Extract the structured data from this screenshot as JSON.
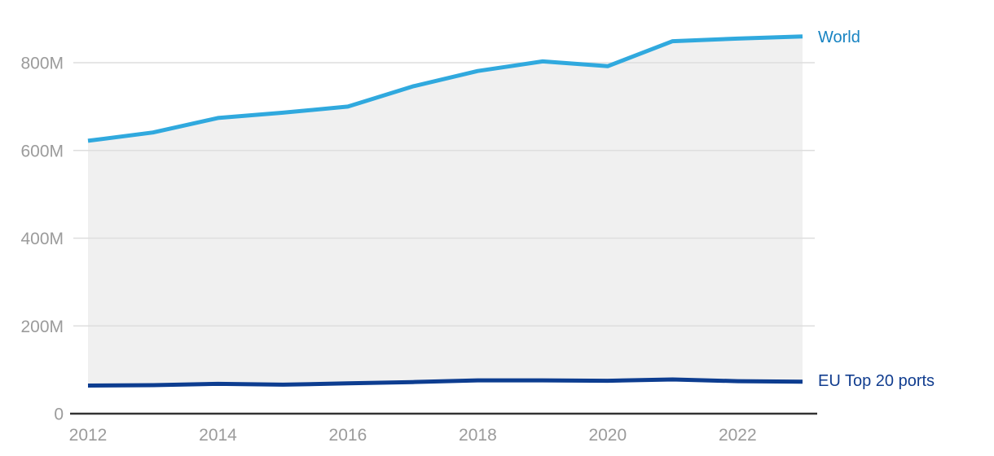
{
  "chart_data": {
    "type": "area",
    "title": "",
    "xlabel": "",
    "ylabel": "",
    "unit": "M",
    "x": [
      2012,
      2013,
      2014,
      2015,
      2016,
      2017,
      2018,
      2019,
      2020,
      2021,
      2022,
      2023
    ],
    "series": [
      {
        "name": "World",
        "values": [
          622,
          641,
          674,
          686,
          700,
          746,
          781,
          803,
          792,
          849,
          855,
          860
        ],
        "line_color": "#30A9DE",
        "label_color": "#1783C2"
      },
      {
        "name": "EU Top 20 ports",
        "values": [
          64,
          65,
          68,
          66,
          69,
          72,
          76,
          76,
          75,
          78,
          74,
          73
        ],
        "line_color": "#0D3D90",
        "label_color": "#113D8F"
      }
    ],
    "fill_between_series": true,
    "fill_color": "#F0F0F0",
    "y_axis": {
      "ticks": [
        {
          "label": "0",
          "value": 0
        },
        {
          "label": "200M",
          "value": 200
        },
        {
          "label": "400M",
          "value": 400
        },
        {
          "label": "600M",
          "value": 600
        },
        {
          "label": "800M",
          "value": 800
        }
      ],
      "range_min": 0,
      "range_max": 860
    },
    "x_axis": {
      "ticks": [
        {
          "label": "2012",
          "value": 2012
        },
        {
          "label": "2014",
          "value": 2014
        },
        {
          "label": "2016",
          "value": 2016
        },
        {
          "label": "2018",
          "value": 2018
        },
        {
          "label": "2020",
          "value": 2020
        },
        {
          "label": "2022",
          "value": 2022
        }
      ]
    },
    "legend_position": "line-end-right",
    "grid": "horizontal",
    "colors": {
      "grid_line": "#DEDEDE",
      "axis_line": "#333333",
      "tick_text": "#9B9B9B",
      "background": "#FFFFFF"
    }
  }
}
